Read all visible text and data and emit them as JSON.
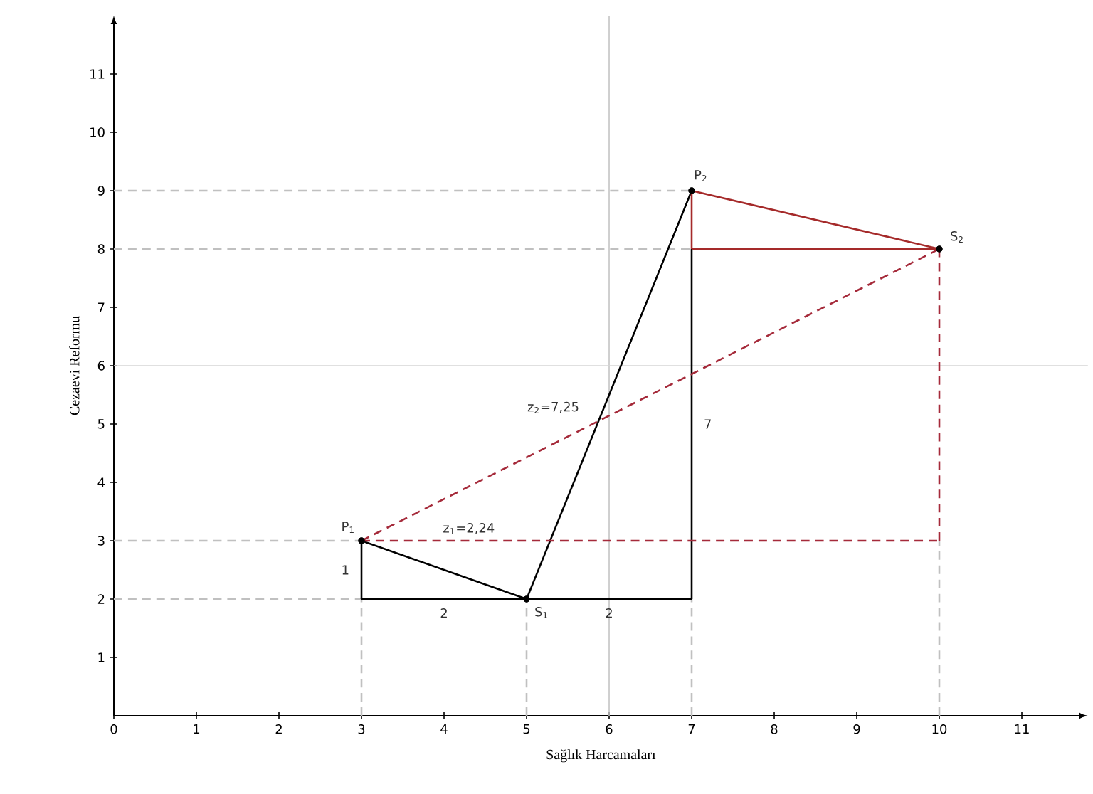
{
  "chart_data": {
    "type": "line",
    "xlabel": "Sağlık Harcamaları",
    "ylabel": "Cezaevi Reformu",
    "xlim": [
      0,
      11.8
    ],
    "ylim": [
      0,
      12
    ],
    "xticks": [
      0,
      1,
      2,
      3,
      4,
      5,
      6,
      7,
      8,
      9,
      10,
      11
    ],
    "yticks": [
      1,
      2,
      3,
      4,
      5,
      6,
      7,
      8,
      9,
      10,
      11
    ],
    "series": [
      {
        "color": "#c0c0c0",
        "line_style": "dashed",
        "x": [
          0,
          7
        ],
        "values": [
          9,
          9
        ]
      },
      {
        "color": "#c0c0c0",
        "line_style": "dashed",
        "x": [
          0,
          10
        ],
        "values": [
          8,
          8
        ]
      },
      {
        "color": "#c0c0c0",
        "line_style": "dashed",
        "x": [
          0,
          3
        ],
        "values": [
          3,
          3
        ]
      },
      {
        "color": "#c0c0c0",
        "line_style": "dashed",
        "x": [
          0,
          3
        ],
        "values": [
          2,
          2
        ]
      },
      {
        "color": "#c0c0c0",
        "line_style": "dashed",
        "x": [
          3,
          3
        ],
        "values": [
          0,
          2
        ]
      },
      {
        "color": "#c0c0c0",
        "line_style": "dashed",
        "x": [
          5,
          5
        ],
        "values": [
          0,
          2
        ]
      },
      {
        "color": "#c0c0c0",
        "line_style": "dashed",
        "x": [
          7,
          7
        ],
        "values": [
          0,
          2
        ]
      },
      {
        "color": "#c0c0c0",
        "line_style": "dashed",
        "x": [
          10,
          10
        ],
        "values": [
          0,
          3
        ]
      },
      {
        "color": "#000000",
        "line_style": "solid",
        "x": [
          3,
          5
        ],
        "values": [
          3,
          2
        ]
      },
      {
        "color": "#000000",
        "line_style": "solid",
        "x": [
          3,
          7
        ],
        "values": [
          2,
          2
        ]
      },
      {
        "color": "#000000",
        "line_style": "solid",
        "x": [
          5,
          7
        ],
        "values": [
          2,
          9
        ]
      },
      {
        "color": "#000000",
        "line_style": "solid",
        "x": [
          3,
          3
        ],
        "values": [
          2,
          3
        ]
      },
      {
        "color": "#000000",
        "line_style": "solid",
        "x": [
          7,
          7
        ],
        "values": [
          2,
          8
        ]
      },
      {
        "color": "#a52a2a",
        "line_style": "solid",
        "x": [
          7,
          10
        ],
        "values": [
          9,
          8
        ]
      },
      {
        "color": "#a52a2a",
        "line_style": "solid",
        "x": [
          7,
          10
        ],
        "values": [
          8,
          8
        ]
      },
      {
        "color": "#a52a2a",
        "line_style": "solid",
        "x": [
          7,
          7
        ],
        "values": [
          8,
          9
        ]
      },
      {
        "color": "#a52a3a",
        "line_style": "dashed",
        "x": [
          3,
          10
        ],
        "values": [
          3,
          8
        ]
      },
      {
        "color": "#a52a3a",
        "line_style": "dashed",
        "x": [
          3,
          10
        ],
        "values": [
          3,
          3
        ]
      },
      {
        "color": "#a52a3a",
        "line_style": "dashed",
        "x": [
          10,
          10
        ],
        "values": [
          3,
          8
        ]
      },
      {
        "type": "scatter",
        "color": "#000000",
        "marker": "circle",
        "x": [
          3,
          5,
          7,
          10
        ],
        "values": [
          3,
          2,
          9,
          8
        ]
      }
    ],
    "ref_lines": [
      {
        "axis": "x",
        "value": 6,
        "color": "#c4c4c4"
      },
      {
        "axis": "y",
        "value": 6,
        "color": "#d6d6d6"
      }
    ],
    "annotations": [
      {
        "text": "P$_{1}$",
        "x": 3,
        "y": 3
      },
      {
        "text": "S$_{1}$",
        "x": 5,
        "y": 2
      },
      {
        "text": "P$_{2}$",
        "x": 7,
        "y": 9
      },
      {
        "text": "S$_{2}$",
        "x": 10,
        "y": 8
      },
      {
        "text": "1",
        "x": 3,
        "y": 2.5
      },
      {
        "text": "2",
        "x": 4,
        "y": 2
      },
      {
        "text": "2",
        "x": 6,
        "y": 2
      },
      {
        "text": "7",
        "x": 7,
        "y": 5
      },
      {
        "text": "z$_{2}$=7,25",
        "x": 5.87,
        "y": 5.05
      },
      {
        "text": "z$_{1}$=2,24",
        "x": 4.3,
        "y": 3
      }
    ]
  }
}
